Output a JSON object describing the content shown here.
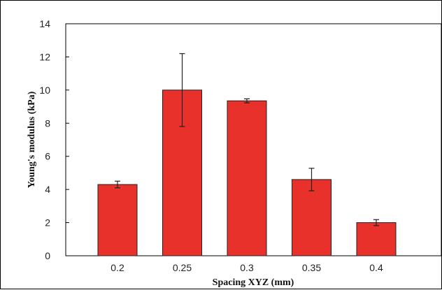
{
  "chart_data": {
    "type": "bar",
    "title": "",
    "xlabel": "Spacing XYZ (mm)",
    "ylabel": "Young's modulus (kPa)",
    "categories": [
      "0.2",
      "0.25",
      "0.3",
      "0.35",
      "0.4"
    ],
    "values": [
      4.3,
      10.0,
      9.35,
      4.6,
      2.0
    ],
    "error": [
      0.2,
      2.2,
      0.12,
      0.68,
      0.18
    ],
    "ylim": [
      0,
      14
    ],
    "yticks": [
      0,
      2,
      4,
      6,
      8,
      10,
      12,
      14
    ],
    "grid": false,
    "bar_color": "#e8312a"
  }
}
